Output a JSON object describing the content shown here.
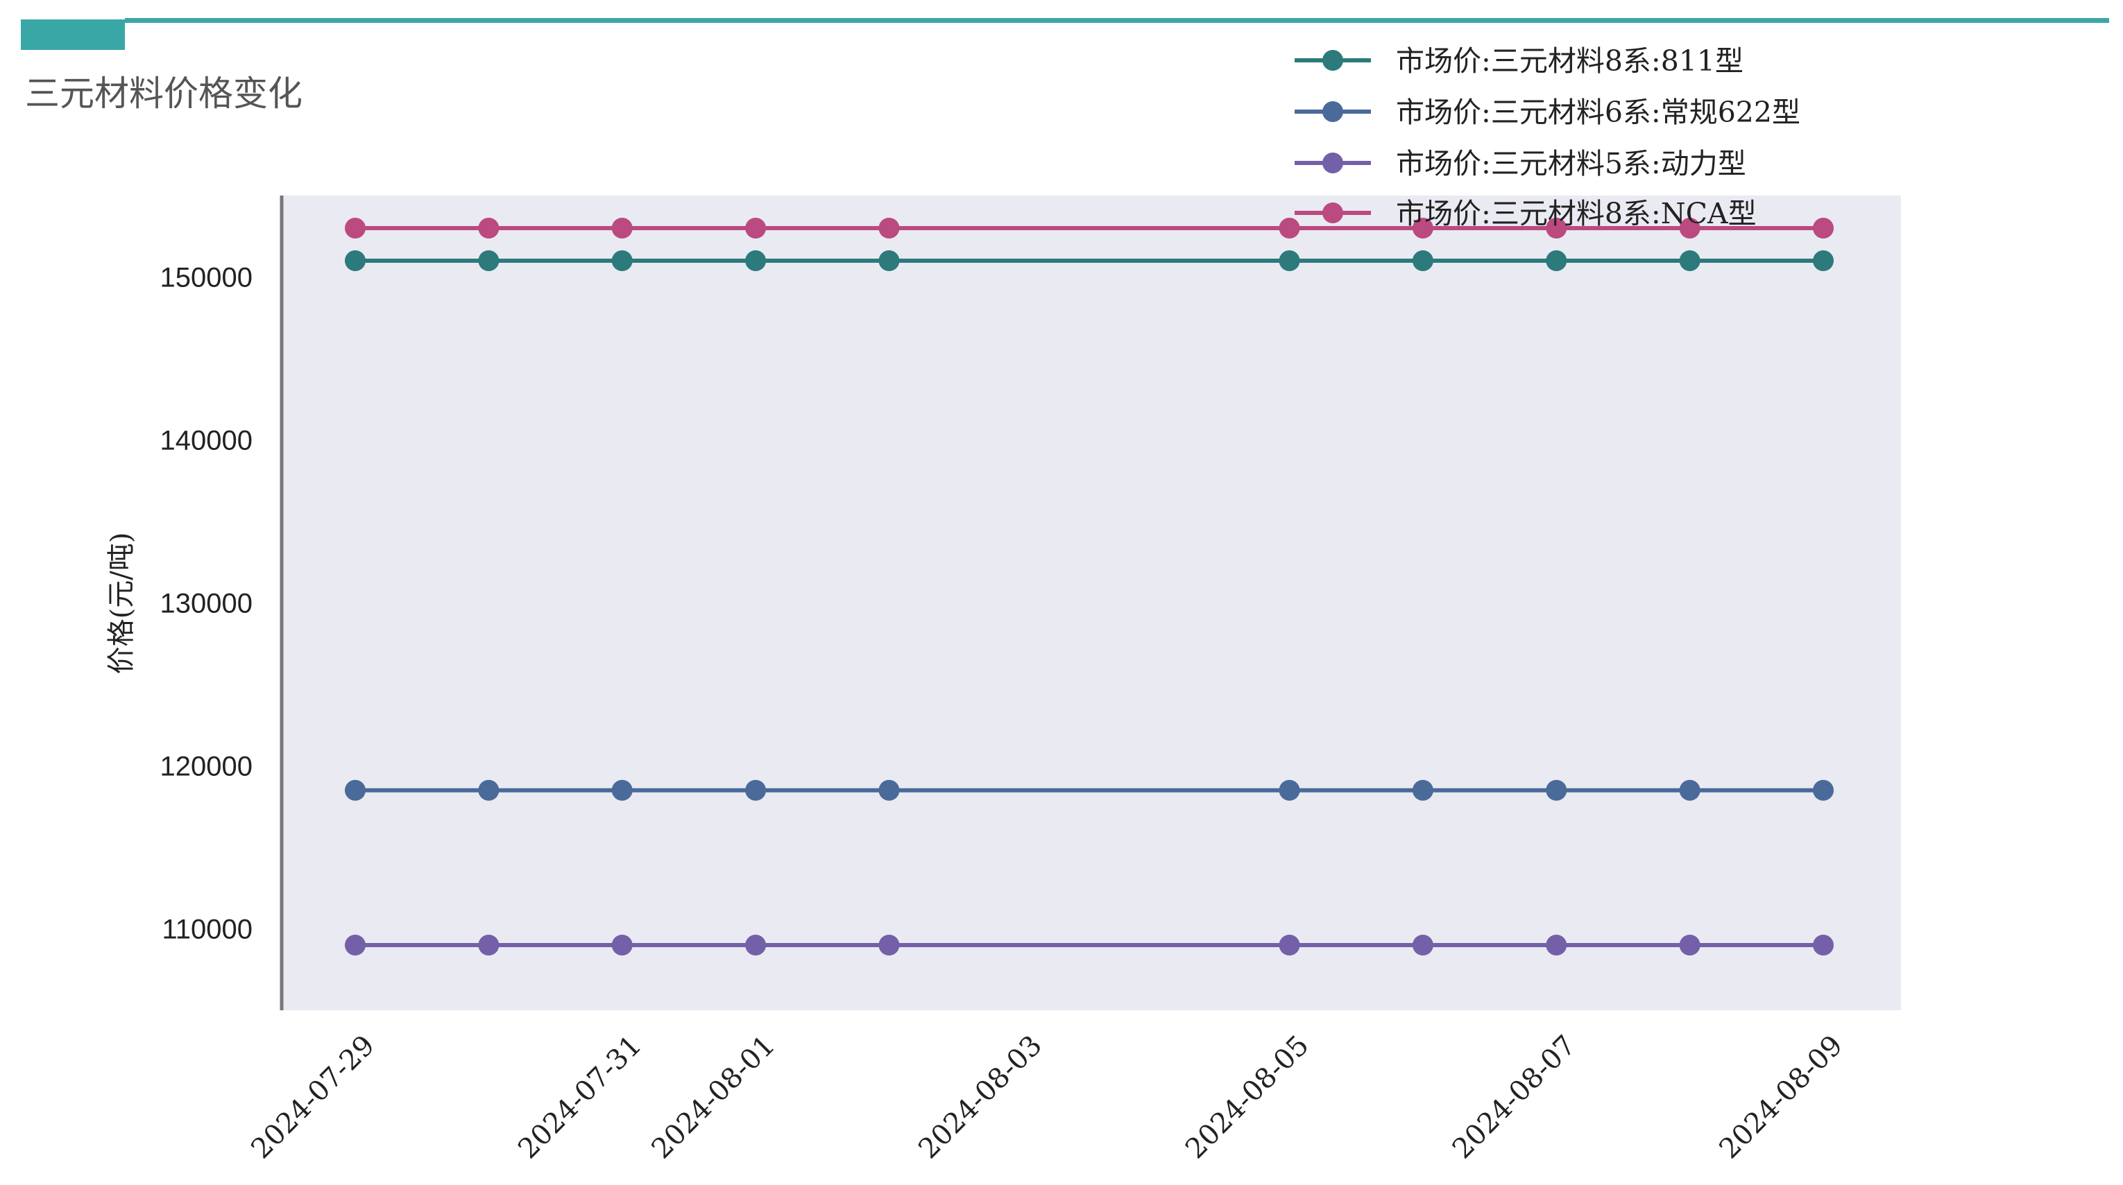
{
  "page": {
    "title": "三元材料价格变化",
    "accent_color": "#3aa7a7"
  },
  "chart_data": {
    "type": "line",
    "title": "",
    "xlabel": "",
    "ylabel": "价格(元/吨)",
    "x": [
      "2024-07-29",
      "2024-07-30",
      "2024-07-31",
      "2024-08-01",
      "2024-08-02",
      "2024-08-05",
      "2024-08-06",
      "2024-08-07",
      "2024-08-08",
      "2024-08-09"
    ],
    "x_ticks": [
      "2024-07-29",
      "2024-07-31",
      "2024-08-01",
      "2024-08-03",
      "2024-08-05",
      "2024-08-07",
      "2024-08-09"
    ],
    "x_range": [
      "2024-07-29",
      "2024-08-09"
    ],
    "ylim": [
      105000,
      155000
    ],
    "y_ticks": [
      110000,
      120000,
      130000,
      140000,
      150000
    ],
    "grid": false,
    "legend_position": "top-right",
    "plot_background": "#eaeaf2",
    "series": [
      {
        "name": "市场价:三元材料8系:811型",
        "color": "#2c7a7b",
        "values": [
          151000,
          151000,
          151000,
          151000,
          151000,
          151000,
          151000,
          151000,
          151000,
          151000
        ]
      },
      {
        "name": "市场价:三元材料6系:常规622型",
        "color": "#4a6a9a",
        "values": [
          118500,
          118500,
          118500,
          118500,
          118500,
          118500,
          118500,
          118500,
          118500,
          118500
        ]
      },
      {
        "name": "市场价:三元材料5系:动力型",
        "color": "#7460a8",
        "values": [
          109000,
          109000,
          109000,
          109000,
          109000,
          109000,
          109000,
          109000,
          109000,
          109000
        ]
      },
      {
        "name": "市场价:三元材料8系:NCA型",
        "color": "#bb4a80",
        "values": [
          153000,
          153000,
          153000,
          153000,
          153000,
          153000,
          153000,
          153000,
          153000,
          153000
        ]
      }
    ]
  }
}
